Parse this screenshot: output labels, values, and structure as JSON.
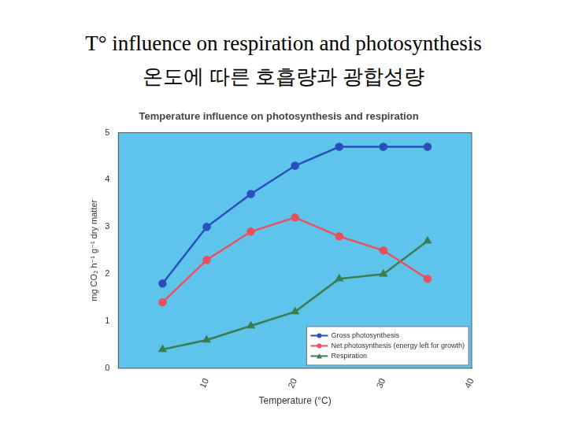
{
  "header": {
    "title": "T° influence on respiration and photosynthesis",
    "subtitle": "온도에 따른 호흡량과 광합성량"
  },
  "chart_data": {
    "type": "line",
    "title": "Temperature influence on photosynthesis and respiration",
    "x_label": "Temperature (°C)",
    "y_label": "mg CO₂ h⁻¹ g⁻¹ dry matter",
    "x": [
      5,
      10,
      15,
      20,
      25,
      30,
      35
    ],
    "series": [
      {
        "name": "Gross photosynthesis",
        "color": "#2b4fb8",
        "marker": "circle",
        "values": [
          1.8,
          3.0,
          3.7,
          4.3,
          4.7,
          4.7,
          4.7
        ]
      },
      {
        "name": "Net photosynthesis (energy left for growth)",
        "color": "#e8505b",
        "marker": "circle",
        "values": [
          1.4,
          2.3,
          2.9,
          3.2,
          2.8,
          2.5,
          1.9
        ]
      },
      {
        "name": "Respiration",
        "color": "#3a7d52",
        "marker": "triangle",
        "values": [
          0.4,
          0.6,
          0.9,
          1.2,
          1.9,
          2.0,
          2.7
        ]
      }
    ],
    "xlim": [
      0,
      40
    ],
    "xticks": [
      10,
      20,
      30,
      40
    ],
    "ylim": [
      0,
      5
    ],
    "yticks": [
      0,
      1,
      2,
      3,
      4,
      5
    ],
    "grid": false,
    "legend": "lower right"
  }
}
